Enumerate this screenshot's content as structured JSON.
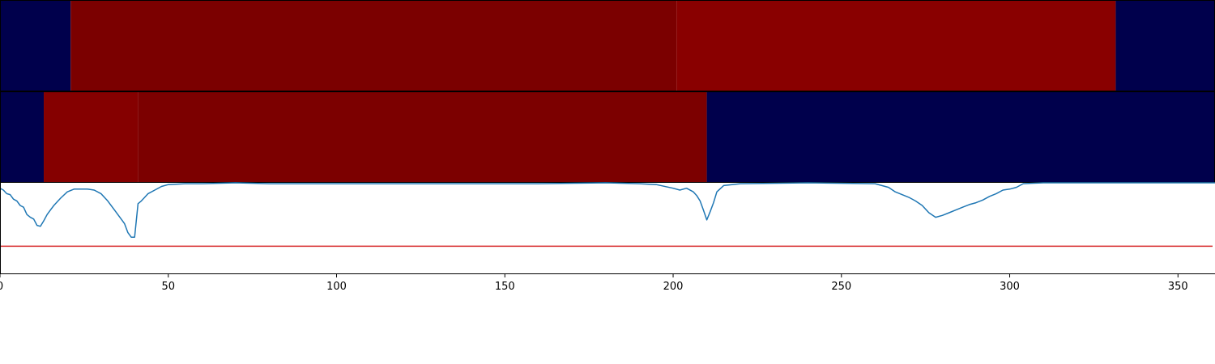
{
  "chart_data": [
    {
      "type": "heatmap",
      "x_range": [
        0,
        361
      ],
      "segments": [
        {
          "x0": 0,
          "x1": 21,
          "color": "#00004c"
        },
        {
          "x0": 21,
          "x1": 201,
          "color": "#7b0000"
        },
        {
          "x0": 201,
          "x1": 331.5,
          "color": "#890000"
        },
        {
          "x0": 331.5,
          "x1": 361,
          "color": "#00004c"
        }
      ]
    },
    {
      "type": "heatmap",
      "x_range": [
        0,
        361
      ],
      "segments": [
        {
          "x0": 0,
          "x1": 13,
          "color": "#00004c"
        },
        {
          "x0": 13,
          "x1": 41,
          "color": "#850000"
        },
        {
          "x0": 41,
          "x1": 210,
          "color": "#7c0000"
        },
        {
          "x0": 210,
          "x1": 361,
          "color": "#00004c"
        }
      ]
    },
    {
      "type": "line",
      "xlim": [
        0,
        361
      ],
      "ylim": [
        -1.0,
        0.0
      ],
      "x_ticks": [
        0,
        50,
        100,
        150,
        200,
        250,
        300,
        350
      ],
      "x_tick_labels": [
        "0",
        "50",
        "100",
        "150",
        "200",
        "250",
        "300",
        "350"
      ],
      "threshold": {
        "y": -0.7,
        "color": "#d62728"
      },
      "line_color": "#1f77b4",
      "series": [
        {
          "x": [
            0,
            1,
            2,
            3,
            4,
            5,
            6,
            7,
            8,
            9,
            10,
            11,
            12,
            13,
            14,
            15,
            16,
            18,
            20,
            22,
            24,
            26,
            28,
            30,
            32,
            34,
            36,
            37,
            38,
            39,
            40,
            41,
            42,
            43,
            44,
            46,
            48,
            50,
            55,
            60,
            70,
            80,
            100,
            120,
            140,
            160,
            180,
            190,
            195,
            200,
            202,
            204,
            206,
            207,
            208,
            209,
            210,
            211,
            212,
            213,
            215,
            220,
            240,
            260,
            264,
            266,
            268,
            270,
            272,
            274,
            276,
            278,
            280,
            282,
            284,
            286,
            288,
            290,
            292,
            294,
            296,
            298,
            300,
            302,
            304,
            310,
            330,
            361
          ],
          "y": [
            -0.06,
            -0.08,
            -0.12,
            -0.13,
            -0.18,
            -0.2,
            -0.25,
            -0.27,
            -0.35,
            -0.38,
            -0.4,
            -0.47,
            -0.48,
            -0.42,
            -0.35,
            -0.3,
            -0.25,
            -0.17,
            -0.1,
            -0.07,
            -0.07,
            -0.07,
            -0.08,
            -0.12,
            -0.2,
            -0.3,
            -0.4,
            -0.45,
            -0.55,
            -0.6,
            -0.6,
            -0.23,
            -0.2,
            -0.16,
            -0.12,
            -0.08,
            -0.04,
            -0.02,
            -0.01,
            -0.01,
            -0.0,
            -0.01,
            -0.01,
            -0.01,
            -0.01,
            -0.01,
            -0.0,
            -0.01,
            -0.02,
            -0.06,
            -0.08,
            -0.06,
            -0.1,
            -0.14,
            -0.2,
            -0.3,
            -0.41,
            -0.32,
            -0.22,
            -0.1,
            -0.03,
            -0.01,
            -0.0,
            -0.01,
            -0.05,
            -0.1,
            -0.13,
            -0.16,
            -0.2,
            -0.25,
            -0.33,
            -0.38,
            -0.36,
            -0.33,
            -0.3,
            -0.27,
            -0.24,
            -0.22,
            -0.19,
            -0.15,
            -0.12,
            -0.08,
            -0.07,
            -0.05,
            -0.01,
            -0.0,
            -0.0,
            -0.0
          ]
        }
      ]
    }
  ]
}
